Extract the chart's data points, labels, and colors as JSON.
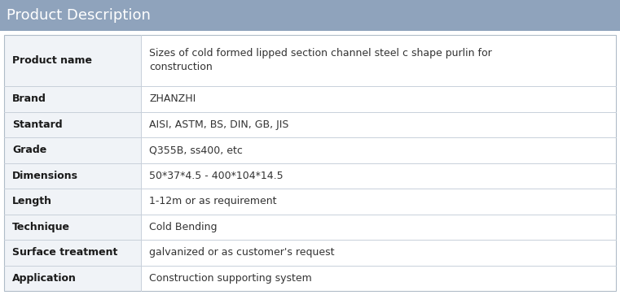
{
  "title": "Product Description",
  "title_bg_color": "#8fa3bc",
  "title_text_color": "#ffffff",
  "title_fontsize": 13,
  "row_bg_color": "#f0f3f7",
  "row_bg_color2": "#ffffff",
  "border_color": "#c8d0da",
  "outer_border_color": "#b0bcc8",
  "label_fontsize": 9,
  "value_fontsize": 9,
  "label_color": "#1a1a1a",
  "value_color": "#333333",
  "fig_bg_color": "#ffffff",
  "rows": [
    {
      "label": "Product name",
      "value": "Sizes of cold formed lipped section channel steel c shape purlin for\nconstruction",
      "tall": true
    },
    {
      "label": "Brand",
      "value": "ZHANZHI",
      "tall": false
    },
    {
      "label": "Stantard",
      "value": "AISI, ASTM, BS, DIN, GB, JIS",
      "tall": false
    },
    {
      "label": "Grade",
      "value": "Q355B, ss400, etc",
      "tall": false
    },
    {
      "label": "Dimensions",
      "value": "50*37*4.5 - 400*104*14.5",
      "tall": false
    },
    {
      "label": "Length",
      "value": "1-12m or as requirement",
      "tall": false
    },
    {
      "label": "Technique",
      "value": "Cold Bending",
      "tall": false
    },
    {
      "label": "Surface treatment",
      "value": "galvanized or as customer's request",
      "tall": false
    },
    {
      "label": "Application",
      "value": "Construction supporting system",
      "tall": false
    }
  ]
}
